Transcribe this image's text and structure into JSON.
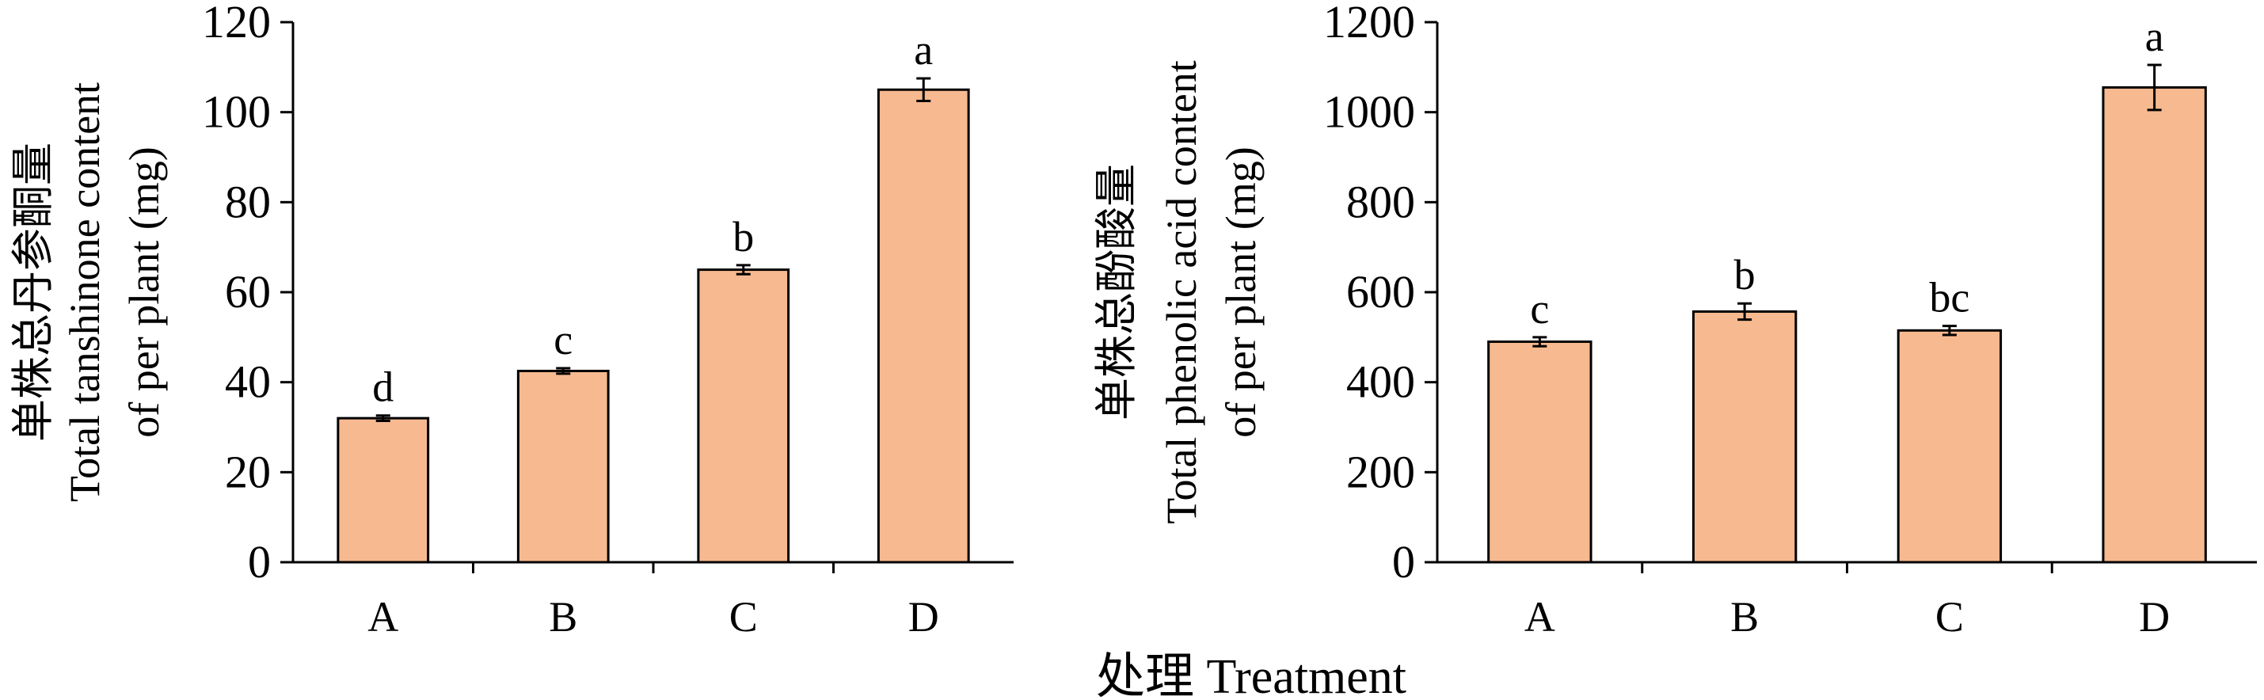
{
  "colors": {
    "bar_fill": "#F7B98F",
    "bar_stroke": "#000000",
    "axis": "#000000"
  },
  "shared_xlabel": "处理 Treatment",
  "chart_data": [
    {
      "type": "bar",
      "categories": [
        "A",
        "B",
        "C",
        "D"
      ],
      "values": [
        32,
        42.5,
        65,
        105
      ],
      "errors": [
        0.6,
        0.6,
        1.0,
        2.5
      ],
      "significance_letters": [
        "d",
        "c",
        "b",
        "a"
      ],
      "ylabel_lines": [
        "单株总丹参酮量",
        "Total tanshinone content",
        "of per plant (mg)"
      ],
      "yticks": [
        0,
        20,
        40,
        60,
        80,
        100,
        120
      ],
      "ylim": [
        0,
        120
      ],
      "grid": false,
      "legend": "none"
    },
    {
      "type": "bar",
      "categories": [
        "A",
        "B",
        "C",
        "D"
      ],
      "values": [
        490,
        557,
        515,
        1055
      ],
      "errors": [
        10,
        18,
        10,
        50
      ],
      "significance_letters": [
        "c",
        "b",
        "bc",
        "a"
      ],
      "ylabel_lines": [
        "单株总酚酸量",
        "Total phenolic acid content",
        "of per plant (mg)"
      ],
      "yticks": [
        0,
        200,
        400,
        600,
        800,
        1000,
        1200
      ],
      "ylim": [
        0,
        1200
      ],
      "grid": false,
      "legend": "none"
    }
  ]
}
